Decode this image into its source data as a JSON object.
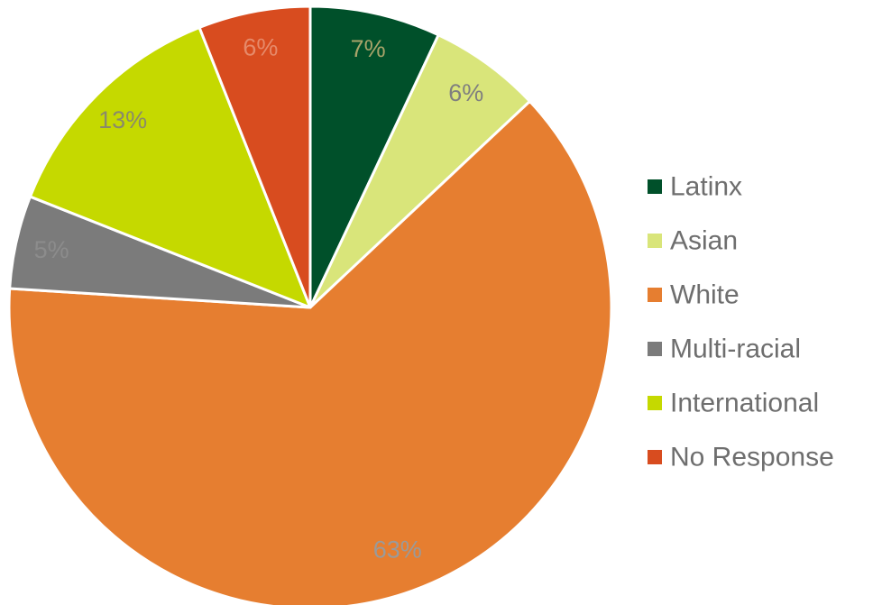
{
  "chart_data": {
    "type": "pie",
    "title": "",
    "legend_position": "right",
    "start_angle_degrees": 0,
    "direction": "clockwise",
    "slices": [
      {
        "label": "Latinx",
        "value": 7,
        "display": "7%",
        "color": "#00502a",
        "label_color": "#a9a46a"
      },
      {
        "label": "Asian",
        "value": 6,
        "display": "6%",
        "color": "#d9e57a",
        "label_color": "#7f7f7f"
      },
      {
        "label": "White",
        "value": 63,
        "display": "63%",
        "color": "#e67e30",
        "label_color": "#9a9a9a"
      },
      {
        "label": "Multi-racial",
        "value": 5,
        "display": "5%",
        "color": "#7b7b7b",
        "label_color": "#8c8c8c"
      },
      {
        "label": "International",
        "value": 13,
        "display": "13%",
        "color": "#c5d900",
        "label_color": "#8a8a6a"
      },
      {
        "label": "No Response",
        "value": 6,
        "display": "6%",
        "color": "#d84c1f",
        "label_color": "#e68a6a"
      }
    ]
  }
}
